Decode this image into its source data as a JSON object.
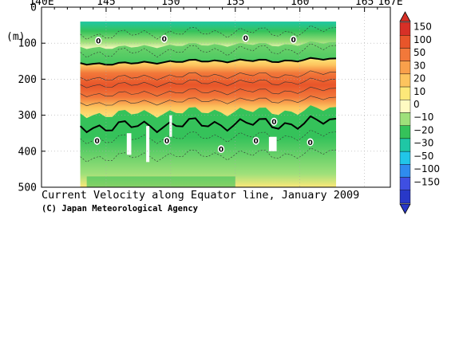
{
  "chart_data": {
    "type": "heatmap",
    "title": "Current Velocity along Equator line, January 2009",
    "credit": "(C) Japan Meteorological Agency",
    "x_tick_labels": [
      "140E",
      "145",
      "150",
      "155",
      "160",
      "165",
      "167E"
    ],
    "x_tick_values": [
      140,
      145,
      150,
      155,
      160,
      165,
      167
    ],
    "x_range": [
      140,
      167
    ],
    "data_x_range": [
      143,
      162.8
    ],
    "y_unit_label": "(m)",
    "y_tick_labels": [
      "0",
      "100",
      "200",
      "300",
      "400",
      "500"
    ],
    "y_tick_values": [
      0,
      100,
      200,
      300,
      400,
      500
    ],
    "y_range": [
      0,
      500
    ],
    "y_inverted": true,
    "data_top_depth": 40,
    "core_depth": {
      "x": [
        143,
        146,
        149,
        152,
        155,
        158,
        161,
        162.8
      ],
      "depth": [
        215,
        218,
        212,
        210,
        208,
        210,
        205,
        205
      ]
    },
    "zero_contour_labels": [
      {
        "text": "0",
        "x": 144.4,
        "y": 93
      },
      {
        "text": "0",
        "x": 149.5,
        "y": 88
      },
      {
        "text": "0",
        "x": 155.8,
        "y": 86
      },
      {
        "text": "0",
        "x": 159.5,
        "y": 90
      },
      {
        "text": "0",
        "x": 158.0,
        "y": 318
      },
      {
        "text": "0",
        "x": 144.3,
        "y": 371
      },
      {
        "text": "0",
        "x": 149.7,
        "y": 371
      },
      {
        "text": "0",
        "x": 153.9,
        "y": 394
      },
      {
        "text": "0",
        "x": 156.6,
        "y": 371
      },
      {
        "text": "0",
        "x": 160.8,
        "y": 375
      }
    ],
    "colorbar": {
      "labels": [
        "150",
        "100",
        "50",
        "30",
        "20",
        "10",
        "0",
        "−10",
        "−20",
        "−30",
        "−50",
        "−100",
        "−150"
      ],
      "colors": [
        "#d73027",
        "#e8552a",
        "#f2783a",
        "#f9a04b",
        "#fdc45e",
        "#fde879",
        "#fffac2",
        "#9fe07a",
        "#35c25a",
        "#1fc7a5",
        "#21c6e8",
        "#2f8bee",
        "#3f4fe2",
        "#2838c8"
      ]
    }
  }
}
